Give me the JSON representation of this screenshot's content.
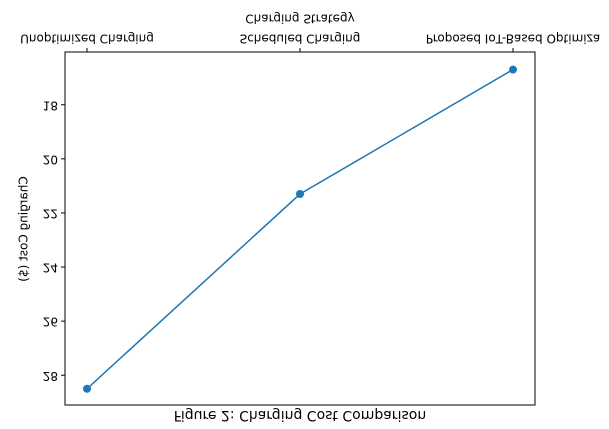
{
  "chart_data": {
    "type": "line",
    "title": "Figure 2: Charging Cost Comparison",
    "x_label": "Charging Strategy",
    "y_label": "Charging Cost ($)",
    "categories": [
      "Unoptimized Charging",
      "Scheduled Charging",
      "Proposed IoT-Based Optimiza"
    ],
    "series": [
      {
        "name": "Charging Cost",
        "color": "#1f77b4",
        "values": [
          28.5,
          21.3,
          16.7
        ]
      }
    ],
    "ylim": [
      16.05,
      29.1
    ],
    "yticks": [
      18,
      20,
      22,
      24,
      26,
      28
    ],
    "flipped_vertically": true
  }
}
